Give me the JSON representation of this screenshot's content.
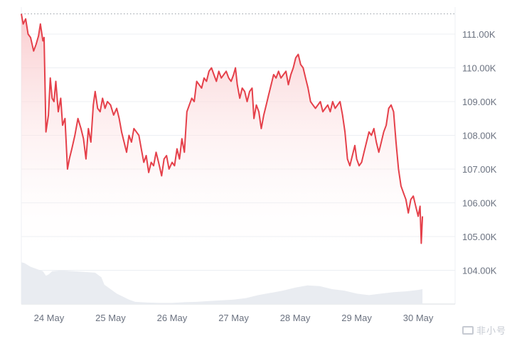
{
  "chart_data": {
    "type": "line",
    "title": "",
    "xlabel": "",
    "ylabel": "",
    "x_ticks": [
      "24 May",
      "25 May",
      "26 May",
      "27 May",
      "28 May",
      "29 May",
      "30 May"
    ],
    "y_ticks": [
      "111.00K",
      "110.00K",
      "109.00K",
      "108.00K",
      "107.00K",
      "106.00K",
      "105.00K",
      "104.00K"
    ],
    "y_tick_values": [
      111000,
      110000,
      109000,
      108000,
      107000,
      106000,
      105000,
      104000
    ],
    "ylim": [
      103000,
      111800
    ],
    "x_domain_days": [
      23.55,
      30.6
    ],
    "reference_line_value": 111600,
    "grid": true,
    "colors": {
      "line": "#e5404a",
      "fill_top": "#f9c6c9",
      "volume": "#e9ecf1",
      "grid": "#eceff3"
    },
    "series": [
      {
        "values": [
          [
            23.55,
            111600
          ],
          [
            23.58,
            111300
          ],
          [
            23.62,
            111450
          ],
          [
            23.66,
            111000
          ],
          [
            23.7,
            110900
          ],
          [
            23.75,
            110500
          ],
          [
            23.79,
            110700
          ],
          [
            23.83,
            110950
          ],
          [
            23.86,
            111300
          ],
          [
            23.9,
            110800
          ],
          [
            23.92,
            110900
          ],
          [
            23.95,
            108100
          ],
          [
            23.99,
            108600
          ],
          [
            24.02,
            109700
          ],
          [
            24.05,
            109100
          ],
          [
            24.08,
            109000
          ],
          [
            24.11,
            109600
          ],
          [
            24.15,
            108700
          ],
          [
            24.19,
            109100
          ],
          [
            24.22,
            108300
          ],
          [
            24.26,
            108500
          ],
          [
            24.3,
            107000
          ],
          [
            24.33,
            107300
          ],
          [
            24.37,
            107600
          ],
          [
            24.42,
            108000
          ],
          [
            24.47,
            108500
          ],
          [
            24.52,
            108200
          ],
          [
            24.56,
            107900
          ],
          [
            24.6,
            107300
          ],
          [
            24.64,
            108200
          ],
          [
            24.68,
            107800
          ],
          [
            24.72,
            108900
          ],
          [
            24.75,
            109300
          ],
          [
            24.79,
            108800
          ],
          [
            24.83,
            108700
          ],
          [
            24.87,
            109100
          ],
          [
            24.91,
            108800
          ],
          [
            24.95,
            109000
          ],
          [
            25.0,
            108900
          ],
          [
            25.05,
            108600
          ],
          [
            25.1,
            108800
          ],
          [
            25.14,
            108500
          ],
          [
            25.18,
            108100
          ],
          [
            25.22,
            107800
          ],
          [
            25.26,
            107500
          ],
          [
            25.3,
            108000
          ],
          [
            25.34,
            107800
          ],
          [
            25.38,
            108200
          ],
          [
            25.42,
            108100
          ],
          [
            25.46,
            108000
          ],
          [
            25.5,
            107600
          ],
          [
            25.54,
            107200
          ],
          [
            25.58,
            107400
          ],
          [
            25.62,
            106900
          ],
          [
            25.66,
            107200
          ],
          [
            25.7,
            107100
          ],
          [
            25.74,
            107500
          ],
          [
            25.78,
            107200
          ],
          [
            25.83,
            106800
          ],
          [
            25.87,
            107300
          ],
          [
            25.91,
            107400
          ],
          [
            25.95,
            107000
          ],
          [
            26.0,
            107200
          ],
          [
            26.04,
            107100
          ],
          [
            26.08,
            107600
          ],
          [
            26.12,
            107300
          ],
          [
            26.16,
            107900
          ],
          [
            26.2,
            107500
          ],
          [
            26.24,
            108700
          ],
          [
            26.28,
            108900
          ],
          [
            26.32,
            109100
          ],
          [
            26.36,
            109000
          ],
          [
            26.4,
            109600
          ],
          [
            26.44,
            109500
          ],
          [
            26.48,
            109400
          ],
          [
            26.52,
            109700
          ],
          [
            26.56,
            109600
          ],
          [
            26.6,
            109900
          ],
          [
            26.64,
            110000
          ],
          [
            26.68,
            109800
          ],
          [
            26.72,
            109600
          ],
          [
            26.76,
            109900
          ],
          [
            26.8,
            109700
          ],
          [
            26.84,
            109800
          ],
          [
            26.88,
            109900
          ],
          [
            26.92,
            109700
          ],
          [
            26.96,
            109600
          ],
          [
            27.0,
            109800
          ],
          [
            27.03,
            110000
          ],
          [
            27.06,
            109500
          ],
          [
            27.1,
            109100
          ],
          [
            27.14,
            109400
          ],
          [
            27.18,
            109300
          ],
          [
            27.22,
            109000
          ],
          [
            27.26,
            109300
          ],
          [
            27.3,
            109400
          ],
          [
            27.33,
            108500
          ],
          [
            27.37,
            108900
          ],
          [
            27.41,
            108700
          ],
          [
            27.45,
            108200
          ],
          [
            27.49,
            108600
          ],
          [
            27.53,
            108900
          ],
          [
            27.57,
            109200
          ],
          [
            27.61,
            109500
          ],
          [
            27.65,
            109800
          ],
          [
            27.69,
            109700
          ],
          [
            27.73,
            109900
          ],
          [
            27.77,
            109700
          ],
          [
            27.81,
            109800
          ],
          [
            27.85,
            109900
          ],
          [
            27.89,
            109500
          ],
          [
            27.93,
            109800
          ],
          [
            27.97,
            110000
          ],
          [
            28.01,
            110300
          ],
          [
            28.05,
            110400
          ],
          [
            28.09,
            110100
          ],
          [
            28.13,
            110000
          ],
          [
            28.17,
            109700
          ],
          [
            28.21,
            109400
          ],
          [
            28.25,
            109000
          ],
          [
            28.29,
            108900
          ],
          [
            28.33,
            108800
          ],
          [
            28.37,
            108900
          ],
          [
            28.41,
            109000
          ],
          [
            28.45,
            108700
          ],
          [
            28.49,
            108800
          ],
          [
            28.53,
            108900
          ],
          [
            28.57,
            108700
          ],
          [
            28.61,
            109000
          ],
          [
            28.65,
            108800
          ],
          [
            28.69,
            108900
          ],
          [
            28.73,
            109000
          ],
          [
            28.77,
            108600
          ],
          [
            28.81,
            108100
          ],
          [
            28.85,
            107300
          ],
          [
            28.89,
            107100
          ],
          [
            28.93,
            107400
          ],
          [
            28.97,
            107700
          ],
          [
            29.0,
            107300
          ],
          [
            29.04,
            107100
          ],
          [
            29.08,
            107200
          ],
          [
            29.12,
            107500
          ],
          [
            29.16,
            107800
          ],
          [
            29.2,
            108100
          ],
          [
            29.24,
            108000
          ],
          [
            29.28,
            108200
          ],
          [
            29.32,
            107800
          ],
          [
            29.36,
            107500
          ],
          [
            29.4,
            107800
          ],
          [
            29.44,
            108100
          ],
          [
            29.48,
            108300
          ],
          [
            29.52,
            108800
          ],
          [
            29.56,
            108900
          ],
          [
            29.6,
            108700
          ],
          [
            29.64,
            107800
          ],
          [
            29.68,
            107000
          ],
          [
            29.72,
            106500
          ],
          [
            29.76,
            106300
          ],
          [
            29.8,
            106100
          ],
          [
            29.84,
            105700
          ],
          [
            29.88,
            106100
          ],
          [
            29.92,
            106200
          ],
          [
            29.96,
            105900
          ],
          [
            30.0,
            105600
          ],
          [
            30.03,
            105900
          ],
          [
            30.05,
            104800
          ],
          [
            30.07,
            105600
          ]
        ]
      }
    ],
    "volume_series": {
      "values": [
        [
          23.55,
          56
        ],
        [
          23.6,
          55
        ],
        [
          23.7,
          50
        ],
        [
          23.8,
          47
        ],
        [
          23.9,
          44
        ],
        [
          23.95,
          38
        ],
        [
          24.0,
          40
        ],
        [
          24.05,
          44
        ],
        [
          24.2,
          45
        ],
        [
          24.4,
          44
        ],
        [
          24.6,
          43
        ],
        [
          24.75,
          42
        ],
        [
          24.85,
          36
        ],
        [
          24.9,
          26
        ],
        [
          25.0,
          20
        ],
        [
          25.1,
          14
        ],
        [
          25.2,
          10
        ],
        [
          25.3,
          6
        ],
        [
          25.4,
          3
        ],
        [
          25.6,
          2
        ],
        [
          25.8,
          1.5
        ],
        [
          26.0,
          1.5
        ],
        [
          26.2,
          2.5
        ],
        [
          26.4,
          3
        ],
        [
          26.6,
          4
        ],
        [
          26.8,
          5
        ],
        [
          27.0,
          6
        ],
        [
          27.2,
          8
        ],
        [
          27.4,
          12
        ],
        [
          27.6,
          15
        ],
        [
          27.8,
          18
        ],
        [
          28.0,
          22
        ],
        [
          28.2,
          25
        ],
        [
          28.4,
          24
        ],
        [
          28.6,
          20
        ],
        [
          28.8,
          18
        ],
        [
          29.0,
          14
        ],
        [
          29.2,
          12
        ],
        [
          29.4,
          14
        ],
        [
          29.6,
          16
        ],
        [
          29.8,
          17
        ],
        [
          30.0,
          19
        ],
        [
          30.07,
          20
        ]
      ]
    }
  }
}
